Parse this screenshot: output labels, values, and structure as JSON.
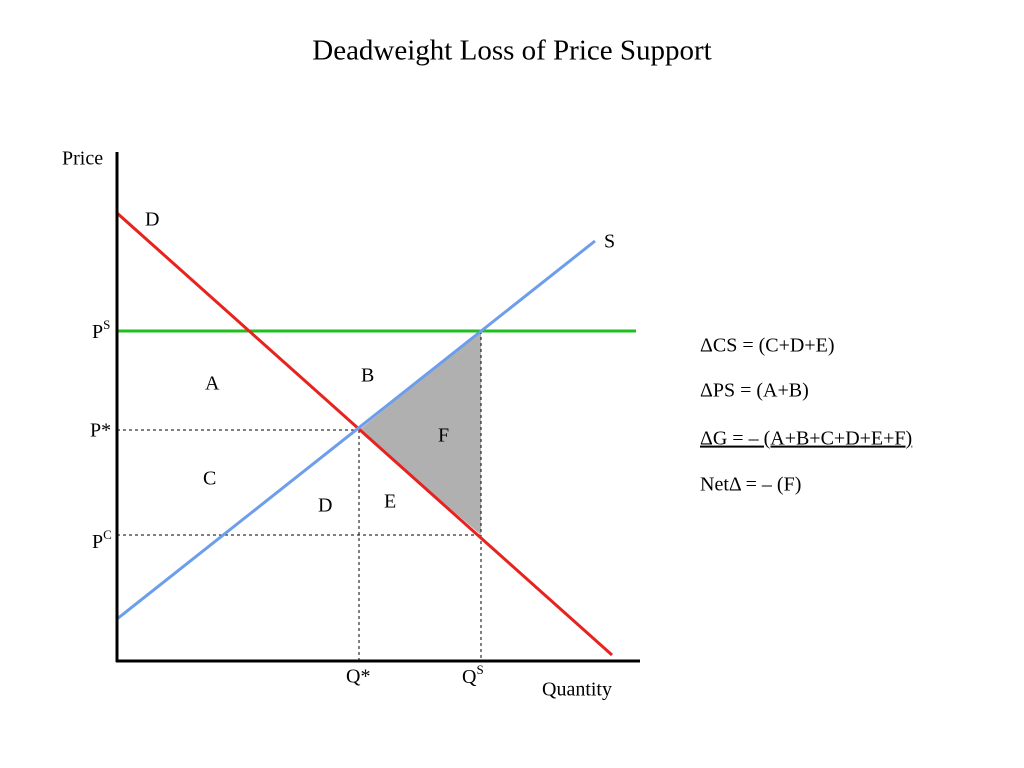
{
  "title": "Deadweight Loss of Price Support",
  "axes": {
    "y_label": "Price",
    "x_label": "Quantity"
  },
  "curves": {
    "demand": "D",
    "supply": "S"
  },
  "price_labels": [
    {
      "base": "P",
      "sup": "S"
    },
    {
      "base": "P*"
    },
    {
      "base": "P",
      "sup": "C"
    }
  ],
  "quantity_labels": [
    {
      "base": "Q*"
    },
    {
      "base": "Q",
      "sup": "S"
    }
  ],
  "regions": [
    "A",
    "B",
    "C",
    "D",
    "E",
    "F"
  ],
  "equations": [
    "ΔCS = (C+D+E)",
    "ΔPS = (A+B)",
    "ΔG = – (A+B+C+D+E+F)",
    "NetΔ = – (F)"
  ]
}
